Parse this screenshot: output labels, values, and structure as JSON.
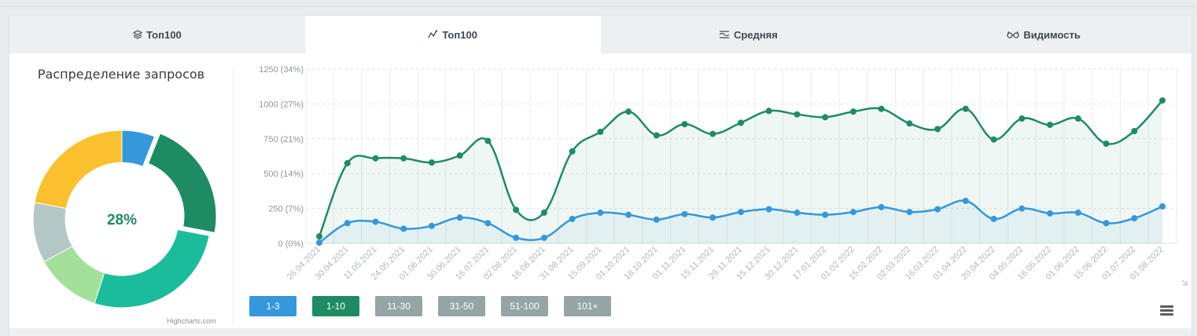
{
  "tabs": [
    {
      "label": "Топ100",
      "icon": "layers-icon",
      "active": false
    },
    {
      "label": "Топ100",
      "icon": "chart-line-icon",
      "active": true
    },
    {
      "label": "Средняя",
      "icon": "average-icon",
      "active": false
    },
    {
      "label": "Видимость",
      "icon": "glasses-icon",
      "active": false
    }
  ],
  "donut": {
    "title": "Распределение запросов",
    "center_text": "28%",
    "credit": "Highcharts.com"
  },
  "filters": [
    {
      "label": "1-3",
      "color": "#3498db"
    },
    {
      "label": "1-10",
      "color": "#1e8c63"
    },
    {
      "label": "11-30",
      "color": "#95a5a6"
    },
    {
      "label": "31-50",
      "color": "#95a5a6"
    },
    {
      "label": "51-100",
      "color": "#95a5a6"
    },
    {
      "label": "101+",
      "color": "#95a5a6"
    }
  ],
  "chart_data": [
    {
      "type": "pie",
      "title": "Распределение запросов",
      "center_label": "28%",
      "slices": [
        {
          "value": 6,
          "color": "#3498db"
        },
        {
          "value": 22,
          "color": "#1e8c63",
          "highlighted": true
        },
        {
          "value": 27,
          "color": "#1abc9c"
        },
        {
          "value": 12,
          "color": "#a3e09a"
        },
        {
          "value": 11,
          "color": "#b3c7c7"
        },
        {
          "value": 22,
          "color": "#fbc02d"
        }
      ]
    },
    {
      "type": "area",
      "categories": [
        "26.04.2021",
        "30.04.2021",
        "11.05.2021",
        "24.05.2021",
        "01.06.2021",
        "30.06.2021",
        "16.07.2021",
        "02.08.2021",
        "16.08.2021",
        "31.08.2021",
        "15.09.2021",
        "01.10.2021",
        "18.10.2021",
        "01.11.2021",
        "15.11.2021",
        "29.11.2021",
        "15.12.2021",
        "30.12.2021",
        "17.01.2022",
        "01.02.2022",
        "15.02.2022",
        "02.03.2022",
        "16.03.2022",
        "01.04.2022",
        "20.04.2022",
        "04.05.2022",
        "16.05.2022",
        "01.06.2022",
        "15.06.2022",
        "01.07.2022",
        "01.08.2022"
      ],
      "ylim": [
        0,
        1250
      ],
      "yticks": [
        {
          "value": 0,
          "label": "0 (0%)"
        },
        {
          "value": 250,
          "label": "250 (7%)"
        },
        {
          "value": 500,
          "label": "500 (14%)"
        },
        {
          "value": 750,
          "label": "750 (21%)"
        },
        {
          "value": 1000,
          "label": "1000 (27%)"
        },
        {
          "value": 1250,
          "label": "1250 (34%)"
        }
      ],
      "series": [
        {
          "color": "#1e8c63",
          "values": [
            50,
            575,
            610,
            610,
            580,
            630,
            735,
            240,
            220,
            660,
            800,
            945,
            775,
            855,
            785,
            865,
            950,
            925,
            905,
            945,
            965,
            860,
            820,
            965,
            745,
            895,
            850,
            895,
            715,
            805,
            1025
          ]
        },
        {
          "color": "#3498db",
          "values": [
            5,
            145,
            155,
            105,
            125,
            185,
            145,
            40,
            40,
            175,
            220,
            205,
            170,
            210,
            185,
            225,
            245,
            220,
            205,
            225,
            260,
            225,
            245,
            305,
            175,
            250,
            215,
            220,
            145,
            180,
            265
          ]
        }
      ]
    }
  ]
}
